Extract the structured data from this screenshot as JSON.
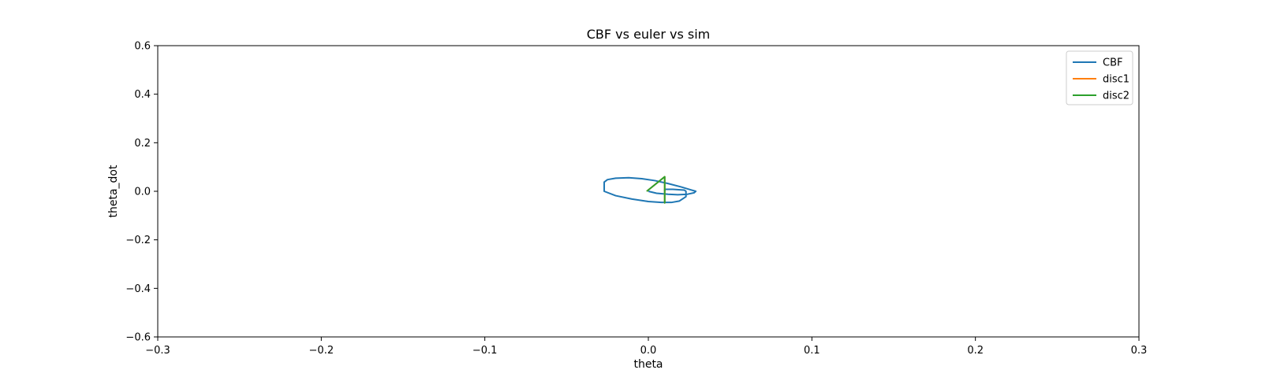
{
  "chart_data": {
    "type": "line",
    "title": "CBF vs euler vs sim",
    "xlabel": "theta",
    "ylabel": "theta_dot",
    "xlim": [
      -0.3,
      0.3
    ],
    "ylim": [
      -0.6,
      0.6
    ],
    "xticks": [
      -0.3,
      -0.2,
      -0.1,
      0.0,
      0.1,
      0.2,
      0.3
    ],
    "xtick_labels": [
      "−0.3",
      "−0.2",
      "−0.1",
      "0.0",
      "0.1",
      "0.2",
      "0.3"
    ],
    "yticks": [
      -0.6,
      -0.4,
      -0.2,
      0.0,
      0.2,
      0.4,
      0.6
    ],
    "ytick_labels": [
      "−0.6",
      "−0.4",
      "−0.2",
      "0.0",
      "0.2",
      "0.4",
      "0.6"
    ],
    "grid": false,
    "legend_position": "top-right",
    "series": [
      {
        "name": "CBF",
        "color": "#1f77b4",
        "points": [
          [
            0.0,
            0.0
          ],
          [
            0.005,
            -0.008
          ],
          [
            0.012,
            -0.012
          ],
          [
            0.018,
            -0.014
          ],
          [
            0.024,
            -0.012
          ],
          [
            0.028,
            -0.006
          ],
          [
            0.029,
            0.0
          ],
          [
            0.026,
            0.006
          ],
          [
            0.02,
            0.018
          ],
          [
            0.012,
            0.032
          ],
          [
            0.004,
            0.044
          ],
          [
            -0.004,
            0.052
          ],
          [
            -0.012,
            0.056
          ],
          [
            -0.02,
            0.054
          ],
          [
            -0.025,
            0.048
          ],
          [
            -0.027,
            0.038
          ],
          [
            -0.027,
            0.025
          ],
          [
            -0.027,
            0.0
          ],
          [
            -0.02,
            -0.018
          ],
          [
            -0.01,
            -0.032
          ],
          [
            0.0,
            -0.042
          ],
          [
            0.008,
            -0.046
          ],
          [
            0.014,
            -0.046
          ],
          [
            0.019,
            -0.04
          ],
          [
            0.023,
            -0.022
          ],
          [
            0.023,
            0.0
          ],
          [
            0.022,
            0.005
          ],
          [
            0.015,
            0.008
          ],
          [
            0.01,
            0.008
          ],
          [
            0.01,
            0.0
          ]
        ]
      },
      {
        "name": "disc1",
        "color": "#ff7f0e",
        "points": [
          [
            -0.001,
            0.0
          ],
          [
            0.01,
            0.06
          ],
          [
            0.01,
            -0.048
          ],
          [
            0.01,
            0.0
          ]
        ]
      },
      {
        "name": "disc2",
        "color": "#2ca02c",
        "points": [
          [
            -0.001,
            0.0
          ],
          [
            0.01,
            0.06
          ],
          [
            0.01,
            -0.048
          ],
          [
            0.01,
            0.0
          ]
        ]
      }
    ]
  }
}
